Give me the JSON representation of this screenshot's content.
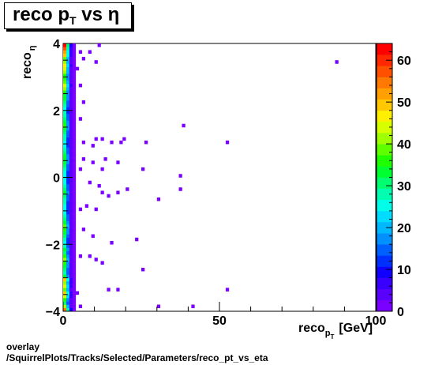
{
  "title": {
    "main": "reco p",
    "sub": "T",
    "rest": " vs ",
    "symbol": "η"
  },
  "footer": {
    "line1": "overlay",
    "line2": "/SquirrelPlots/Tracks/Selected/Parameters/reco_pt_vs_eta"
  },
  "chart_data": {
    "type": "heatmap",
    "xlabel": {
      "main": "reco",
      "sub": "p",
      "subsub": "T",
      "unit": "[GeV]"
    },
    "ylabel": {
      "main": "reco",
      "sub": "η"
    },
    "xlim": [
      0,
      100
    ],
    "ylim": [
      -4,
      4
    ],
    "zlim": [
      0,
      64
    ],
    "x_ticks": [
      "0",
      "50",
      "100"
    ],
    "y_ticks": [
      "−4",
      "−2",
      "0",
      "2",
      "4"
    ],
    "z_ticks": [
      "0",
      "10",
      "20",
      "30",
      "40",
      "50",
      "60"
    ],
    "bin_size": {
      "x": 1,
      "y": 0.1
    },
    "palette": [
      "#7a00ff",
      "#5a00ff",
      "#3a00ff",
      "#1000ff",
      "#0030ff",
      "#0060ff",
      "#0090ff",
      "#00b8ff",
      "#00dcff",
      "#00ffe8",
      "#00ffb0",
      "#00ff70",
      "#00ff30",
      "#20ff00",
      "#60ff00",
      "#a0ff00",
      "#d8ff00",
      "#fff000",
      "#ffc800",
      "#ffa000",
      "#ff7800",
      "#ff5000",
      "#ff2800",
      "#ff0000"
    ],
    "dense_band": {
      "x": [
        0,
        1,
        2,
        3,
        4
      ],
      "counts_per_column": [
        [
          55,
          40,
          30,
          36,
          45,
          48,
          38,
          44,
          42,
          50,
          34,
          28,
          30,
          33,
          37,
          40,
          35,
          30,
          32,
          28,
          25,
          27,
          30,
          33,
          36,
          38,
          34,
          30,
          28,
          26,
          24,
          25,
          27,
          29,
          31,
          33,
          30,
          28,
          26,
          25,
          24,
          26,
          28,
          30,
          32,
          34,
          32,
          30,
          28,
          26,
          25,
          27,
          29,
          31,
          33,
          35,
          33,
          31,
          29,
          27,
          26,
          28,
          30,
          32,
          34,
          36,
          40,
          44,
          38,
          35,
          37,
          40,
          43,
          46,
          42,
          39,
          48,
          52,
          58,
          62
        ],
        [
          28,
          20,
          15,
          18,
          22,
          24,
          19,
          22,
          21,
          25,
          17,
          14,
          15,
          16,
          18,
          20,
          17,
          15,
          16,
          14,
          12,
          13,
          15,
          16,
          18,
          19,
          17,
          15,
          14,
          13,
          12,
          12,
          13,
          14,
          15,
          16,
          15,
          14,
          13,
          12,
          12,
          13,
          14,
          15,
          16,
          17,
          16,
          15,
          14,
          13,
          12,
          13,
          14,
          15,
          16,
          17,
          16,
          15,
          14,
          13,
          13,
          14,
          15,
          16,
          17,
          18,
          20,
          22,
          19,
          17,
          18,
          20,
          21,
          23,
          21,
          19,
          24,
          26,
          29,
          31
        ],
        [
          8,
          5,
          4,
          5,
          6,
          6,
          5,
          6,
          6,
          7,
          5,
          4,
          4,
          4,
          5,
          5,
          4,
          4,
          4,
          4,
          3,
          3,
          4,
          4,
          5,
          5,
          4,
          4,
          4,
          3,
          3,
          3,
          3,
          4,
          4,
          4,
          4,
          4,
          3,
          3,
          3,
          3,
          4,
          4,
          4,
          4,
          4,
          4,
          4,
          3,
          3,
          3,
          4,
          4,
          4,
          4,
          4,
          4,
          4,
          3,
          3,
          4,
          4,
          4,
          4,
          5,
          5,
          6,
          5,
          4,
          5,
          5,
          5,
          6,
          5,
          5,
          6,
          7,
          7,
          8
        ],
        [
          2,
          1,
          1,
          2,
          1,
          2,
          1,
          1,
          2,
          1,
          1,
          2,
          1,
          1,
          2,
          1,
          1,
          1,
          2,
          1,
          1,
          1,
          2,
          1,
          1,
          2,
          1,
          1,
          1,
          2,
          1,
          1,
          1,
          1,
          2,
          1,
          1,
          1,
          2,
          1,
          1,
          1,
          1,
          2,
          1,
          1,
          1,
          2,
          1,
          1,
          1,
          2,
          1,
          1,
          1,
          1,
          2,
          1,
          1,
          1,
          1,
          1,
          2,
          1,
          1,
          1,
          2,
          1,
          1,
          1,
          2,
          1,
          1,
          1,
          2,
          1,
          1,
          2,
          1,
          2
        ]
      ]
    },
    "sparse_points": [
      [
        4.5,
        -3.5
      ],
      [
        5.5,
        -3.9
      ],
      [
        30,
        -3.9
      ],
      [
        41,
        -3.9
      ],
      [
        14,
        -3.4
      ],
      [
        17,
        -3.4
      ],
      [
        52,
        -3.4
      ],
      [
        25,
        -2.8
      ],
      [
        5,
        -2.4
      ],
      [
        8,
        -2.4
      ],
      [
        10,
        -2.5
      ],
      [
        12,
        -2.6
      ],
      [
        23,
        -1.9
      ],
      [
        15,
        -2.0
      ],
      [
        9,
        -1.8
      ],
      [
        6,
        -1.6
      ],
      [
        5,
        -1.0
      ],
      [
        7,
        -0.9
      ],
      [
        10,
        -1.0
      ],
      [
        30,
        -0.7
      ],
      [
        12,
        -0.5
      ],
      [
        14,
        -0.6
      ],
      [
        17,
        -0.5
      ],
      [
        20,
        -0.4
      ],
      [
        37,
        -0.4
      ],
      [
        8,
        -0.2
      ],
      [
        11,
        -0.3
      ],
      [
        25,
        0.2
      ],
      [
        37,
        0.0
      ],
      [
        5,
        0.3
      ],
      [
        9,
        0.4
      ],
      [
        12,
        0.3
      ],
      [
        17,
        0.4
      ],
      [
        13,
        0.5
      ],
      [
        6,
        0.6
      ],
      [
        6,
        1.0
      ],
      [
        9,
        0.9
      ],
      [
        10,
        1.2
      ],
      [
        12,
        1.1
      ],
      [
        15,
        1.0
      ],
      [
        18,
        1.0
      ],
      [
        19,
        1.1
      ],
      [
        26,
        1.0
      ],
      [
        52,
        1.0
      ],
      [
        38,
        1.5
      ],
      [
        5,
        1.7
      ],
      [
        6,
        2.2
      ],
      [
        5,
        2.8
      ],
      [
        4,
        3.3
      ],
      [
        10,
        3.4
      ],
      [
        87,
        3.4
      ],
      [
        5,
        3.7
      ],
      [
        8,
        3.8
      ],
      [
        6,
        3.55
      ],
      [
        11,
        3.95
      ]
    ]
  }
}
